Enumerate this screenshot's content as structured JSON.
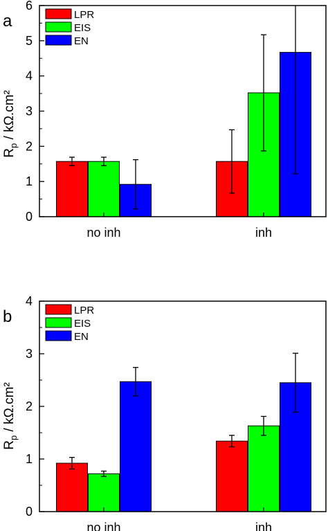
{
  "chart_data": [
    {
      "type": "bar",
      "panel_label": "a",
      "categories": [
        "no inh",
        "inh"
      ],
      "ylabel_main": "R",
      "ylabel_sub": "p",
      "ylabel_rest": " / kΩ.cm²",
      "ylim": [
        0,
        6
      ],
      "yticks": [
        "0",
        "1",
        "2",
        "3",
        "4",
        "5",
        "6"
      ],
      "legend_position": "top-left",
      "series": [
        {
          "name": "LPR",
          "color": "#ff0000",
          "values": [
            1.57,
            1.57
          ],
          "errors": [
            0.12,
            0.9
          ]
        },
        {
          "name": "EIS",
          "color": "#00ff00",
          "values": [
            1.57,
            3.52
          ],
          "errors": [
            0.12,
            1.65
          ]
        },
        {
          "name": "EN",
          "color": "#0000ff",
          "values": [
            0.92,
            4.67
          ],
          "errors": [
            0.7,
            3.45
          ]
        }
      ]
    },
    {
      "type": "bar",
      "panel_label": "b",
      "categories": [
        "no inh",
        "inh"
      ],
      "ylabel_main": "R",
      "ylabel_sub": "p",
      "ylabel_rest": " / kΩ.cm²",
      "ylim": [
        0,
        4
      ],
      "yticks": [
        "0",
        "1",
        "2",
        "3",
        "4"
      ],
      "legend_position": "top-left",
      "series": [
        {
          "name": "LPR",
          "color": "#ff0000",
          "values": [
            0.92,
            1.34
          ],
          "errors": [
            0.11,
            0.11
          ]
        },
        {
          "name": "EIS",
          "color": "#00ff00",
          "values": [
            0.72,
            1.63
          ],
          "errors": [
            0.05,
            0.18
          ]
        },
        {
          "name": "EN",
          "color": "#0000ff",
          "values": [
            2.47,
            2.45
          ],
          "errors": [
            0.27,
            0.56
          ]
        }
      ]
    }
  ]
}
